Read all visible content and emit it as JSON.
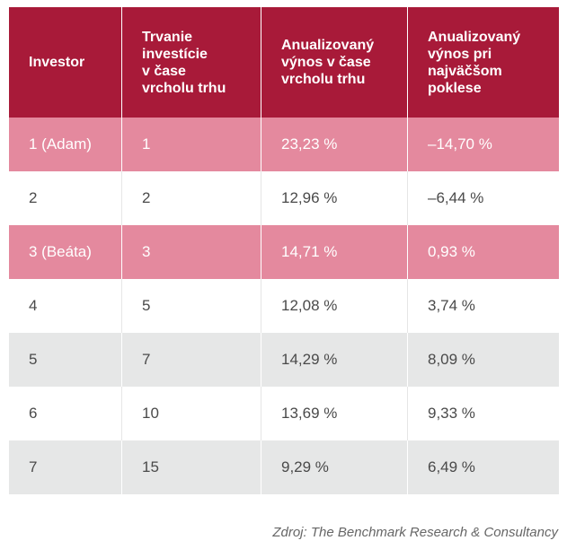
{
  "table": {
    "headers": [
      "Investor",
      "Trvanie\ninvestície\nv čase\nvrcholu trhu",
      "Anualizovaný\nvýnos v čase\nvrcholu trhu",
      "Anualizovaný\nvýnos pri\nnajväčšom\npoklese"
    ],
    "rows": [
      {
        "style": "pink",
        "cells": [
          "1 (Adam)",
          "1",
          "23,23 %",
          "–14,70 %"
        ]
      },
      {
        "style": "white",
        "cells": [
          "2",
          "2",
          "12,96 %",
          "–6,44 %"
        ]
      },
      {
        "style": "pink",
        "cells": [
          "3 (Beáta)",
          "3",
          "14,71 %",
          "0,93 %"
        ]
      },
      {
        "style": "white",
        "cells": [
          "4",
          "5",
          "12,08 %",
          "3,74 %"
        ]
      },
      {
        "style": "grey",
        "cells": [
          "5",
          "7",
          "14,29 %",
          "8,09 %"
        ]
      },
      {
        "style": "white",
        "cells": [
          "6",
          "10",
          "13,69 %",
          "9,33 %"
        ]
      },
      {
        "style": "grey",
        "cells": [
          "7",
          "15",
          "9,29 %",
          "6,49 %"
        ]
      }
    ]
  },
  "source": {
    "prefix": "Zdroj: ",
    "name": "The Benchmark Research & Consultancy"
  },
  "colors": {
    "header": "#a81a39",
    "highlight_row": "#e4899e",
    "alt_row": "#e6e7e7"
  }
}
